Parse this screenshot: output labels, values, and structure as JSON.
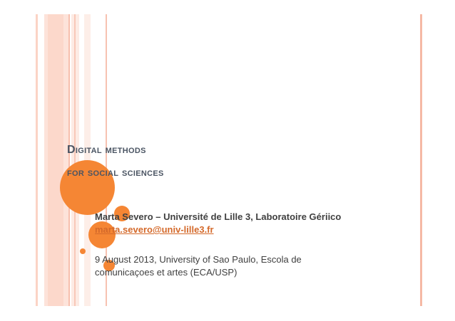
{
  "slide": {
    "title_line1": "Digital methods",
    "title_line2": "for social sciences",
    "author": "Marta Severo – Université de Lille 3, Laboratoire Gériico",
    "email": "marta.severo@univ-lille3.fr",
    "event_line1": "9 August 2013, University of Sao Paulo, Escola de",
    "event_line2": "comunicaçoes et artes (ECA/USP)"
  },
  "colors": {
    "accent": "#f58634",
    "stripe": "#fcd9cc",
    "title": "#4b5563"
  }
}
